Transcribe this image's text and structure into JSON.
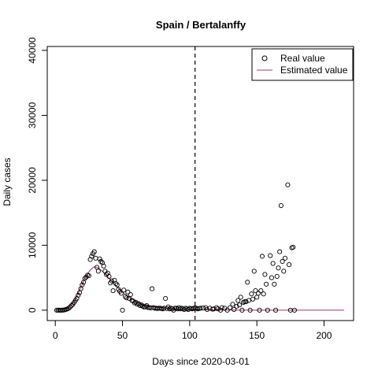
{
  "chart_data": {
    "type": "scatter",
    "title": "Spain / Bertalanffy",
    "xlabel": "Days since 2020-03-01",
    "ylabel": "Daily cases",
    "xlim": [
      -6,
      222
    ],
    "ylim": [
      -1600,
      40600
    ],
    "xticks": [
      0,
      50,
      100,
      150,
      200
    ],
    "yticks": [
      0,
      10000,
      20000,
      30000,
      40000
    ],
    "xtick_labels": [
      "0",
      "50",
      "100",
      "150",
      "200"
    ],
    "ytick_labels": [
      "0",
      "10000",
      "20000",
      "30000",
      "40000"
    ],
    "vline_x": 104,
    "grid": false,
    "legend_position": "top-right",
    "legend": [
      {
        "label": "Real value",
        "marker": "open-circle",
        "color": "#000000"
      },
      {
        "label": "Estimated value",
        "marker": "line",
        "color": "#b0306a"
      }
    ],
    "series": [
      {
        "name": "Real value",
        "kind": "points",
        "color": "#000000",
        "points": [
          [
            1,
            0
          ],
          [
            2,
            0
          ],
          [
            3,
            0
          ],
          [
            4,
            0
          ],
          [
            5,
            0
          ],
          [
            6,
            20
          ],
          [
            7,
            50
          ],
          [
            8,
            120
          ],
          [
            9,
            200
          ],
          [
            10,
            300
          ],
          [
            11,
            500
          ],
          [
            12,
            700
          ],
          [
            13,
            900
          ],
          [
            14,
            1200
          ],
          [
            15,
            1500
          ],
          [
            16,
            1800
          ],
          [
            17,
            2300
          ],
          [
            18,
            2700
          ],
          [
            19,
            3300
          ],
          [
            20,
            3900
          ],
          [
            21,
            4300
          ],
          [
            22,
            4900
          ],
          [
            23,
            5100
          ],
          [
            24,
            5400
          ],
          [
            25,
            5300
          ],
          [
            26,
            7800
          ],
          [
            27,
            8300
          ],
          [
            28,
            8700
          ],
          [
            29,
            9000
          ],
          [
            30,
            8000
          ],
          [
            31,
            6600
          ],
          [
            32,
            6000
          ],
          [
            33,
            7900
          ],
          [
            34,
            7500
          ],
          [
            35,
            7300
          ],
          [
            36,
            6800
          ],
          [
            37,
            6000
          ],
          [
            38,
            5500
          ],
          [
            39,
            5700
          ],
          [
            40,
            5200
          ],
          [
            41,
            4200
          ],
          [
            42,
            4500
          ],
          [
            43,
            3000
          ],
          [
            44,
            4600
          ],
          [
            45,
            4100
          ],
          [
            46,
            3900
          ],
          [
            47,
            3200
          ],
          [
            48,
            2900
          ],
          [
            49,
            2600
          ],
          [
            50,
            0
          ],
          [
            51,
            3100
          ],
          [
            52,
            2100
          ],
          [
            53,
            1900
          ],
          [
            54,
            2800
          ],
          [
            55,
            1800
          ],
          [
            56,
            2400
          ],
          [
            57,
            1500
          ],
          [
            58,
            1400
          ],
          [
            59,
            1100
          ],
          [
            60,
            1200
          ],
          [
            61,
            900
          ],
          [
            62,
            1000
          ],
          [
            63,
            700
          ],
          [
            64,
            800
          ],
          [
            65,
            600
          ],
          [
            66,
            500
          ],
          [
            67,
            500
          ],
          [
            68,
            700
          ],
          [
            69,
            400
          ],
          [
            70,
            400
          ],
          [
            71,
            350
          ],
          [
            72,
            3300
          ],
          [
            73,
            400
          ],
          [
            74,
            300
          ],
          [
            75,
            300
          ],
          [
            76,
            250
          ],
          [
            77,
            300
          ],
          [
            78,
            300
          ],
          [
            79,
            250
          ],
          [
            80,
            200
          ],
          [
            81,
            300
          ],
          [
            82,
            1800
          ],
          [
            83,
            250
          ],
          [
            84,
            500
          ],
          [
            85,
            200
          ],
          [
            86,
            300
          ],
          [
            87,
            200
          ],
          [
            88,
            0
          ],
          [
            89,
            300
          ],
          [
            90,
            300
          ],
          [
            91,
            200
          ],
          [
            92,
            400
          ],
          [
            93,
            200
          ],
          [
            94,
            300
          ],
          [
            95,
            200
          ],
          [
            96,
            100
          ],
          [
            97,
            300
          ],
          [
            98,
            200
          ],
          [
            99,
            100
          ],
          [
            100,
            300
          ],
          [
            101,
            250
          ],
          [
            102,
            200
          ],
          [
            103,
            300
          ],
          [
            104,
            350
          ],
          [
            105,
            300
          ],
          [
            106,
            200
          ],
          [
            107,
            250
          ],
          [
            108,
            300
          ],
          [
            110,
            350
          ],
          [
            112,
            400
          ],
          [
            113,
            100
          ],
          [
            115,
            300
          ],
          [
            117,
            150
          ],
          [
            118,
            200
          ],
          [
            120,
            400
          ],
          [
            121,
            200
          ],
          [
            123,
            0
          ],
          [
            124,
            400
          ],
          [
            126,
            300
          ],
          [
            128,
            0
          ],
          [
            130,
            400
          ],
          [
            132,
            900
          ],
          [
            133,
            100
          ],
          [
            135,
            600
          ],
          [
            136,
            1500
          ],
          [
            137,
            800
          ],
          [
            138,
            2000
          ],
          [
            139,
            0
          ],
          [
            140,
            1200
          ],
          [
            141,
            1300
          ],
          [
            142,
            1300
          ],
          [
            143,
            4300
          ],
          [
            144,
            1500
          ],
          [
            145,
            0
          ],
          [
            146,
            2500
          ],
          [
            147,
            1700
          ],
          [
            148,
            6000
          ],
          [
            149,
            3000
          ],
          [
            150,
            2000
          ],
          [
            151,
            2600
          ],
          [
            152,
            0
          ],
          [
            153,
            3000
          ],
          [
            154,
            8300
          ],
          [
            155,
            2500
          ],
          [
            156,
            5500
          ],
          [
            157,
            4000
          ],
          [
            158,
            0
          ],
          [
            160,
            8400
          ],
          [
            161,
            5000
          ],
          [
            162,
            7200
          ],
          [
            163,
            4000
          ],
          [
            164,
            0
          ],
          [
            165,
            5200
          ],
          [
            166,
            6500
          ],
          [
            167,
            9000
          ],
          [
            168,
            16100
          ],
          [
            169,
            7500
          ],
          [
            170,
            6000
          ],
          [
            171,
            8000
          ],
          [
            173,
            19300
          ],
          [
            174,
            7000
          ],
          [
            175,
            0
          ],
          [
            176,
            9600
          ],
          [
            177,
            9700
          ],
          [
            178,
            0
          ]
        ]
      },
      {
        "name": "Estimated value",
        "kind": "line",
        "color": "#b0306a",
        "points": [
          [
            0,
            0
          ],
          [
            5,
            20
          ],
          [
            10,
            350
          ],
          [
            14,
            1300
          ],
          [
            18,
            3000
          ],
          [
            22,
            4900
          ],
          [
            26,
            6200
          ],
          [
            29,
            6700
          ],
          [
            32,
            6500
          ],
          [
            36,
            5800
          ],
          [
            40,
            4900
          ],
          [
            45,
            3800
          ],
          [
            50,
            2800
          ],
          [
            55,
            2000
          ],
          [
            60,
            1400
          ],
          [
            65,
            1000
          ],
          [
            70,
            700
          ],
          [
            75,
            500
          ],
          [
            80,
            350
          ],
          [
            85,
            250
          ],
          [
            90,
            180
          ],
          [
            95,
            120
          ],
          [
            100,
            80
          ],
          [
            110,
            40
          ],
          [
            120,
            20
          ],
          [
            140,
            5
          ],
          [
            160,
            0
          ],
          [
            180,
            0
          ],
          [
            200,
            0
          ],
          [
            215,
            0
          ]
        ]
      }
    ]
  }
}
